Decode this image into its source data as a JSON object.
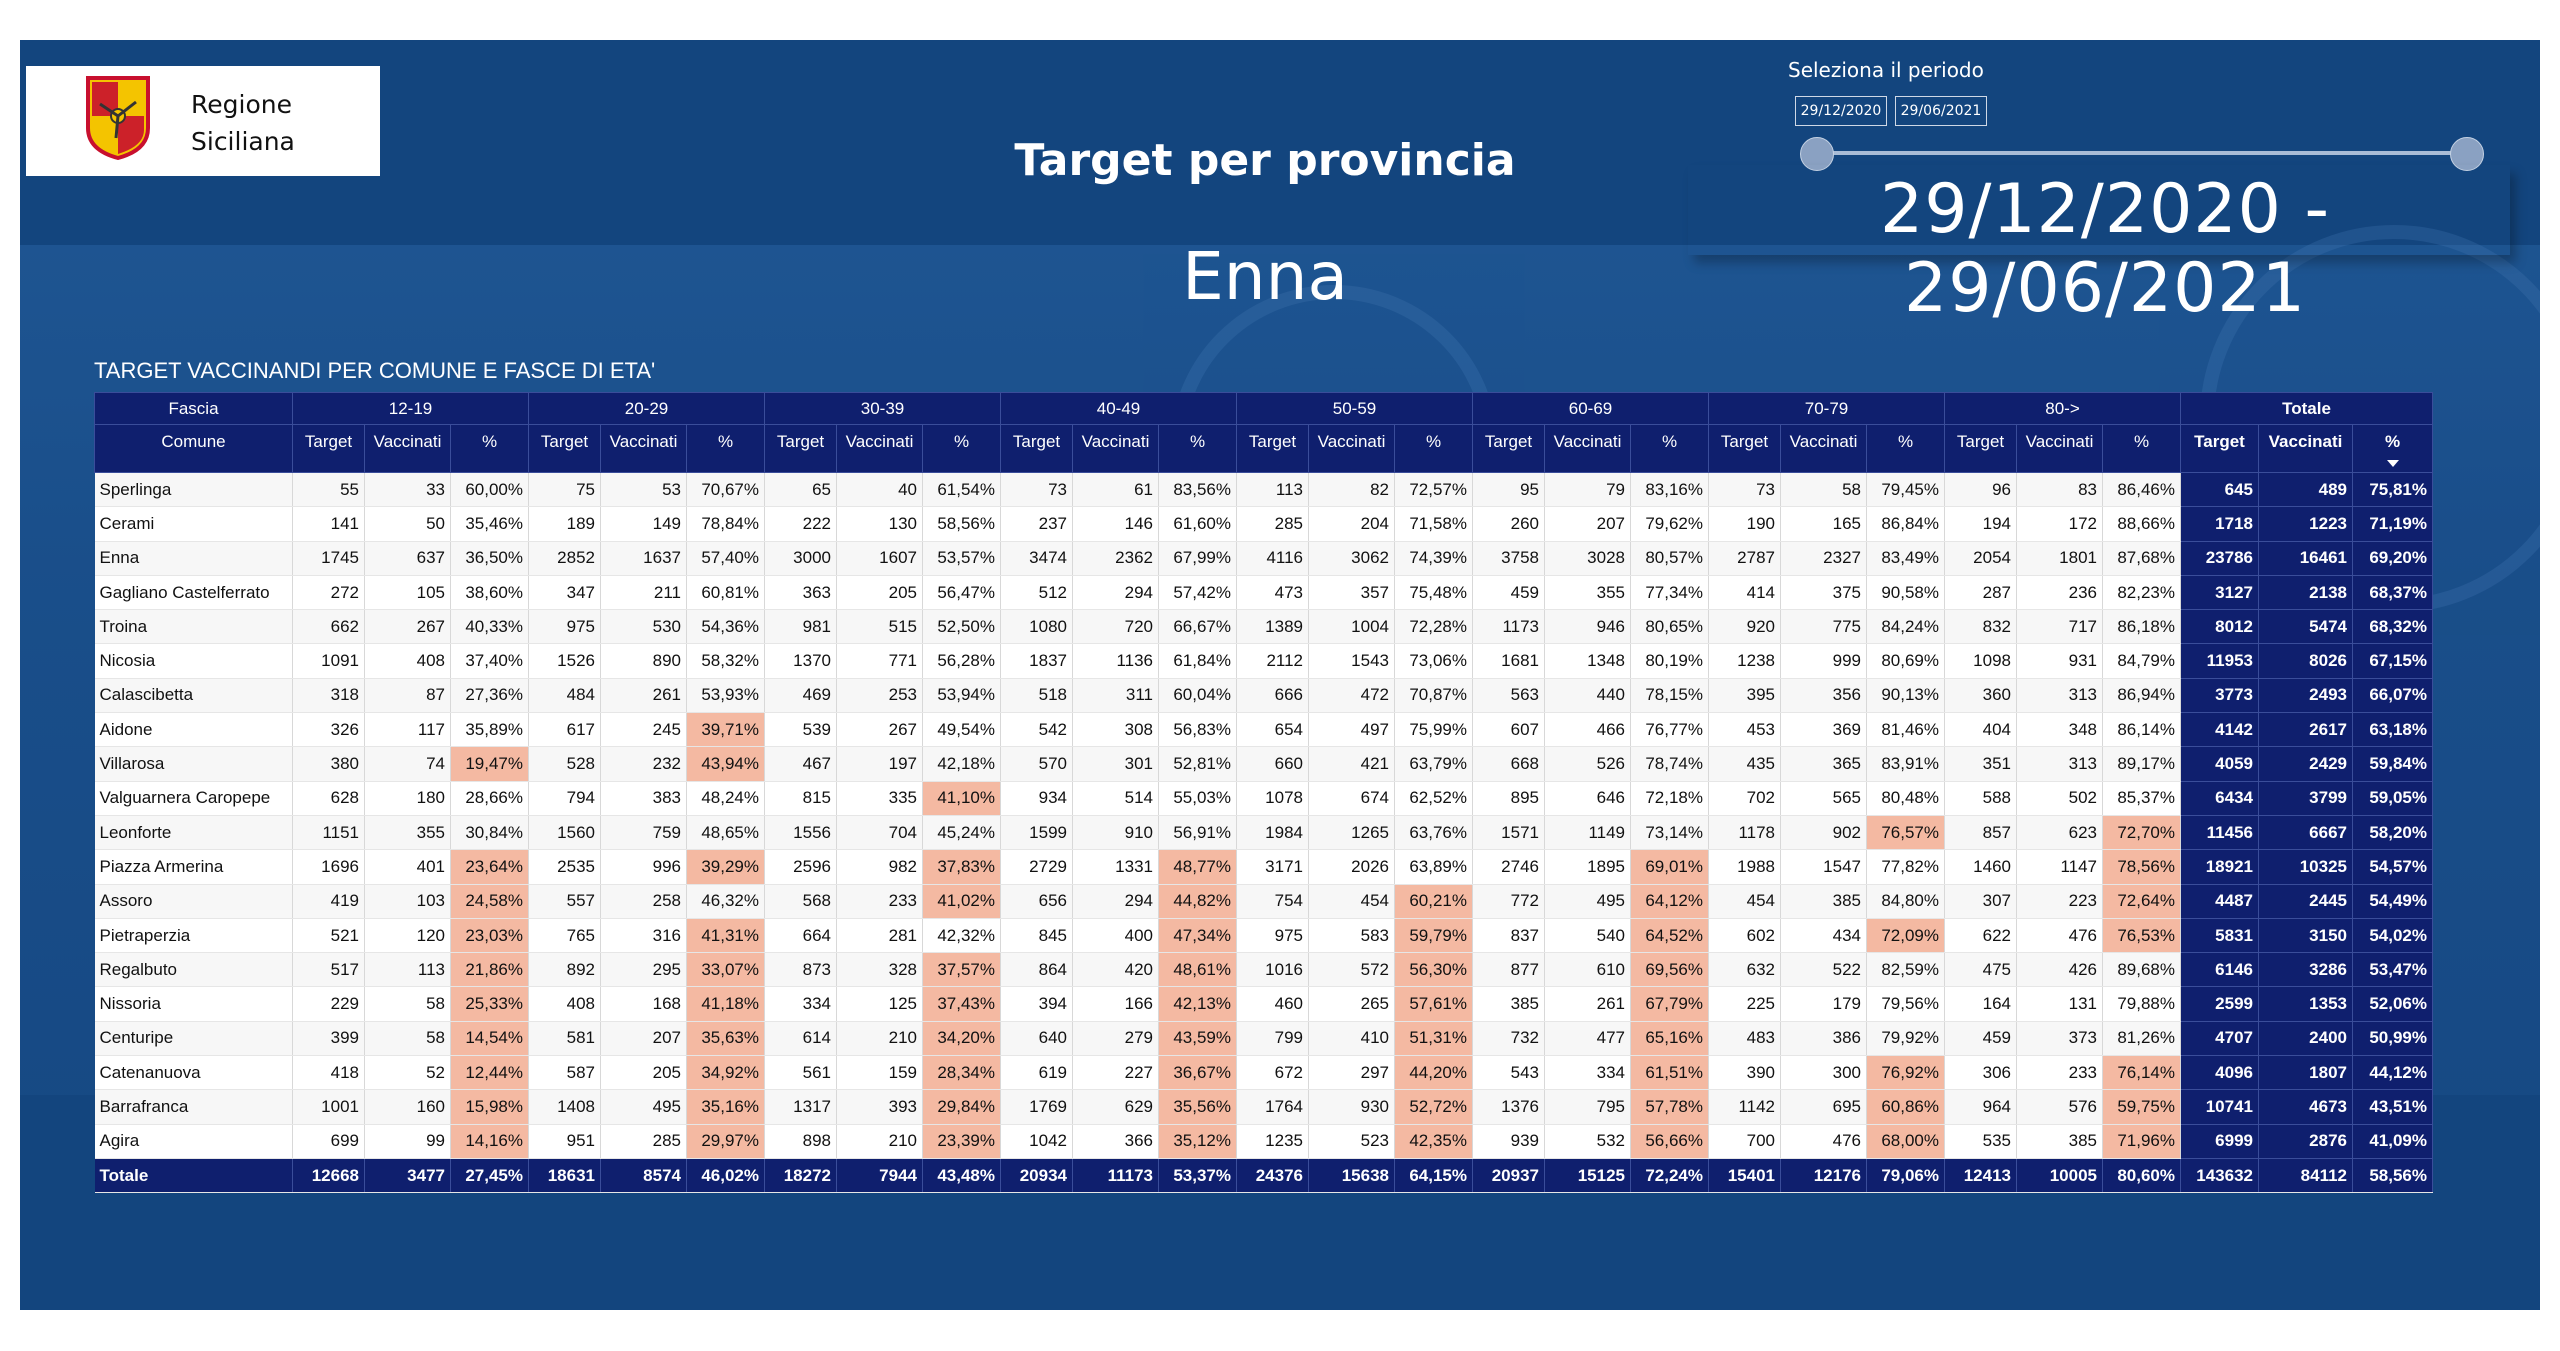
{
  "header": {
    "logo_line1": "Regione",
    "logo_line2": "Siciliana",
    "page_title": "Target per provincia",
    "province": "Enna",
    "period_label": "Seleziona il periodo",
    "date_start": "29/12/2020",
    "date_end": "29/06/2021",
    "range_text": "29/12/2020 - 29/06/2021"
  },
  "table": {
    "title": "TARGET VACCINANDI PER COMUNE E FASCE DI ETA'",
    "fascia_label": "Fascia",
    "comune_label": "Comune",
    "groups": [
      "12-19",
      "20-29",
      "30-39",
      "40-49",
      "50-59",
      "60-69",
      "70-79",
      "80->"
    ],
    "total_group": "Totale",
    "sub_headers": [
      "Target",
      "Vaccinati",
      "%"
    ],
    "footer_label": "Totale",
    "rows": [
      {
        "comune": "Sperlinga",
        "cells": [
          "55",
          "33",
          "60,00%",
          "75",
          "53",
          "70,67%",
          "65",
          "40",
          "61,54%",
          "73",
          "61",
          "83,56%",
          "113",
          "82",
          "72,57%",
          "95",
          "79",
          "83,16%",
          "73",
          "58",
          "79,45%",
          "96",
          "83",
          "86,46%",
          "645",
          "489",
          "75,81%"
        ]
      },
      {
        "comune": "Cerami",
        "cells": [
          "141",
          "50",
          "35,46%",
          "189",
          "149",
          "78,84%",
          "222",
          "130",
          "58,56%",
          "237",
          "146",
          "61,60%",
          "285",
          "204",
          "71,58%",
          "260",
          "207",
          "79,62%",
          "190",
          "165",
          "86,84%",
          "194",
          "172",
          "88,66%",
          "1718",
          "1223",
          "71,19%"
        ]
      },
      {
        "comune": "Enna",
        "cells": [
          "1745",
          "637",
          "36,50%",
          "2852",
          "1637",
          "57,40%",
          "3000",
          "1607",
          "53,57%",
          "3474",
          "2362",
          "67,99%",
          "4116",
          "3062",
          "74,39%",
          "3758",
          "3028",
          "80,57%",
          "2787",
          "2327",
          "83,49%",
          "2054",
          "1801",
          "87,68%",
          "23786",
          "16461",
          "69,20%"
        ]
      },
      {
        "comune": "Gagliano Castelferrato",
        "cells": [
          "272",
          "105",
          "38,60%",
          "347",
          "211",
          "60,81%",
          "363",
          "205",
          "56,47%",
          "512",
          "294",
          "57,42%",
          "473",
          "357",
          "75,48%",
          "459",
          "355",
          "77,34%",
          "414",
          "375",
          "90,58%",
          "287",
          "236",
          "82,23%",
          "3127",
          "2138",
          "68,37%"
        ]
      },
      {
        "comune": "Troina",
        "cells": [
          "662",
          "267",
          "40,33%",
          "975",
          "530",
          "54,36%",
          "981",
          "515",
          "52,50%",
          "1080",
          "720",
          "66,67%",
          "1389",
          "1004",
          "72,28%",
          "1173",
          "946",
          "80,65%",
          "920",
          "775",
          "84,24%",
          "832",
          "717",
          "86,18%",
          "8012",
          "5474",
          "68,32%"
        ]
      },
      {
        "comune": "Nicosia",
        "cells": [
          "1091",
          "408",
          "37,40%",
          "1526",
          "890",
          "58,32%",
          "1370",
          "771",
          "56,28%",
          "1837",
          "1136",
          "61,84%",
          "2112",
          "1543",
          "73,06%",
          "1681",
          "1348",
          "80,19%",
          "1238",
          "999",
          "80,69%",
          "1098",
          "931",
          "84,79%",
          "11953",
          "8026",
          "67,15%"
        ]
      },
      {
        "comune": "Calascibetta",
        "cells": [
          "318",
          "87",
          "27,36%",
          "484",
          "261",
          "53,93%",
          "469",
          "253",
          "53,94%",
          "518",
          "311",
          "60,04%",
          "666",
          "472",
          "70,87%",
          "563",
          "440",
          "78,15%",
          "395",
          "356",
          "90,13%",
          "360",
          "313",
          "86,94%",
          "3773",
          "2493",
          "66,07%"
        ]
      },
      {
        "comune": "Aidone",
        "cells": [
          "326",
          "117",
          "35,89%",
          "617",
          "245",
          "39,71%",
          "539",
          "267",
          "49,54%",
          "542",
          "308",
          "56,83%",
          "654",
          "497",
          "75,99%",
          "607",
          "466",
          "76,77%",
          "453",
          "369",
          "81,46%",
          "404",
          "348",
          "86,14%",
          "4142",
          "2617",
          "63,18%"
        ]
      },
      {
        "comune": "Villarosa",
        "cells": [
          "380",
          "74",
          "19,47%",
          "528",
          "232",
          "43,94%",
          "467",
          "197",
          "42,18%",
          "570",
          "301",
          "52,81%",
          "660",
          "421",
          "63,79%",
          "668",
          "526",
          "78,74%",
          "435",
          "365",
          "83,91%",
          "351",
          "313",
          "89,17%",
          "4059",
          "2429",
          "59,84%"
        ]
      },
      {
        "comune": "Valguarnera Caropepe",
        "cells": [
          "628",
          "180",
          "28,66%",
          "794",
          "383",
          "48,24%",
          "815",
          "335",
          "41,10%",
          "934",
          "514",
          "55,03%",
          "1078",
          "674",
          "62,52%",
          "895",
          "646",
          "72,18%",
          "702",
          "565",
          "80,48%",
          "588",
          "502",
          "85,37%",
          "6434",
          "3799",
          "59,05%"
        ]
      },
      {
        "comune": "Leonforte",
        "cells": [
          "1151",
          "355",
          "30,84%",
          "1560",
          "759",
          "48,65%",
          "1556",
          "704",
          "45,24%",
          "1599",
          "910",
          "56,91%",
          "1984",
          "1265",
          "63,76%",
          "1571",
          "1149",
          "73,14%",
          "1178",
          "902",
          "76,57%",
          "857",
          "623",
          "72,70%",
          "11456",
          "6667",
          "58,20%"
        ]
      },
      {
        "comune": "Piazza Armerina",
        "cells": [
          "1696",
          "401",
          "23,64%",
          "2535",
          "996",
          "39,29%",
          "2596",
          "982",
          "37,83%",
          "2729",
          "1331",
          "48,77%",
          "3171",
          "2026",
          "63,89%",
          "2746",
          "1895",
          "69,01%",
          "1988",
          "1547",
          "77,82%",
          "1460",
          "1147",
          "78,56%",
          "18921",
          "10325",
          "54,57%"
        ]
      },
      {
        "comune": "Assoro",
        "cells": [
          "419",
          "103",
          "24,58%",
          "557",
          "258",
          "46,32%",
          "568",
          "233",
          "41,02%",
          "656",
          "294",
          "44,82%",
          "754",
          "454",
          "60,21%",
          "772",
          "495",
          "64,12%",
          "454",
          "385",
          "84,80%",
          "307",
          "223",
          "72,64%",
          "4487",
          "2445",
          "54,49%"
        ]
      },
      {
        "comune": "Pietraperzia",
        "cells": [
          "521",
          "120",
          "23,03%",
          "765",
          "316",
          "41,31%",
          "664",
          "281",
          "42,32%",
          "845",
          "400",
          "47,34%",
          "975",
          "583",
          "59,79%",
          "837",
          "540",
          "64,52%",
          "602",
          "434",
          "72,09%",
          "622",
          "476",
          "76,53%",
          "5831",
          "3150",
          "54,02%"
        ]
      },
      {
        "comune": "Regalbuto",
        "cells": [
          "517",
          "113",
          "21,86%",
          "892",
          "295",
          "33,07%",
          "873",
          "328",
          "37,57%",
          "864",
          "420",
          "48,61%",
          "1016",
          "572",
          "56,30%",
          "877",
          "610",
          "69,56%",
          "632",
          "522",
          "82,59%",
          "475",
          "426",
          "89,68%",
          "6146",
          "3286",
          "53,47%"
        ]
      },
      {
        "comune": "Nissoria",
        "cells": [
          "229",
          "58",
          "25,33%",
          "408",
          "168",
          "41,18%",
          "334",
          "125",
          "37,43%",
          "394",
          "166",
          "42,13%",
          "460",
          "265",
          "57,61%",
          "385",
          "261",
          "67,79%",
          "225",
          "179",
          "79,56%",
          "164",
          "131",
          "79,88%",
          "2599",
          "1353",
          "52,06%"
        ]
      },
      {
        "comune": "Centuripe",
        "cells": [
          "399",
          "58",
          "14,54%",
          "581",
          "207",
          "35,63%",
          "614",
          "210",
          "34,20%",
          "640",
          "279",
          "43,59%",
          "799",
          "410",
          "51,31%",
          "732",
          "477",
          "65,16%",
          "483",
          "386",
          "79,92%",
          "459",
          "373",
          "81,26%",
          "4707",
          "2400",
          "50,99%"
        ]
      },
      {
        "comune": "Catenanuova",
        "cells": [
          "418",
          "52",
          "12,44%",
          "587",
          "205",
          "34,92%",
          "561",
          "159",
          "28,34%",
          "619",
          "227",
          "36,67%",
          "672",
          "297",
          "44,20%",
          "543",
          "334",
          "61,51%",
          "390",
          "300",
          "76,92%",
          "306",
          "233",
          "76,14%",
          "4096",
          "1807",
          "44,12%"
        ]
      },
      {
        "comune": "Barrafranca",
        "cells": [
          "1001",
          "160",
          "15,98%",
          "1408",
          "495",
          "35,16%",
          "1317",
          "393",
          "29,84%",
          "1769",
          "629",
          "35,56%",
          "1764",
          "930",
          "52,72%",
          "1376",
          "795",
          "57,78%",
          "1142",
          "695",
          "60,86%",
          "964",
          "576",
          "59,75%",
          "10741",
          "4673",
          "43,51%"
        ]
      },
      {
        "comune": "Agira",
        "cells": [
          "699",
          "99",
          "14,16%",
          "951",
          "285",
          "29,97%",
          "898",
          "210",
          "23,39%",
          "1042",
          "366",
          "35,12%",
          "1235",
          "523",
          "42,35%",
          "939",
          "532",
          "56,66%",
          "700",
          "476",
          "68,00%",
          "535",
          "385",
          "71,96%",
          "6999",
          "2876",
          "41,09%"
        ]
      }
    ],
    "totals": [
      "12668",
      "3477",
      "27,45%",
      "18631",
      "8574",
      "46,02%",
      "18272",
      "7944",
      "43,48%",
      "20934",
      "11173",
      "53,37%",
      "24376",
      "15638",
      "64,15%",
      "20937",
      "15125",
      "72,24%",
      "15401",
      "12176",
      "79,06%",
      "12413",
      "10005",
      "80,60%",
      "143632",
      "84112",
      "58,56%"
    ]
  },
  "colors": {
    "background": "#13457e",
    "table_header": "#0f1f6e",
    "highlight": "#f4b9a2"
  },
  "icons": {
    "logo": "trinacria-shield-icon",
    "sort": "sort-desc-icon"
  }
}
